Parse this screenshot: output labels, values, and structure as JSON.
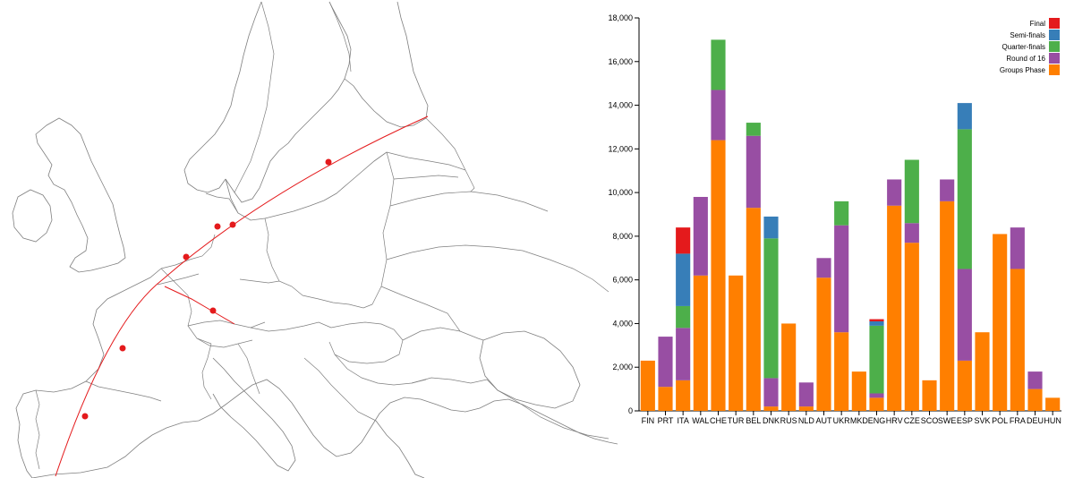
{
  "map": {
    "route_color": "#e41a1c",
    "border_color": "#7f7f7f"
  },
  "chart_data": {
    "type": "bar",
    "stacked": true,
    "categories": [
      "FIN",
      "PRT",
      "ITA",
      "WAL",
      "CHE",
      "TUR",
      "BEL",
      "DNK",
      "RUS",
      "NLD",
      "AUT",
      "UKR",
      "MKD",
      "ENG",
      "HRV",
      "CZE",
      "SCO",
      "SWE",
      "ESP",
      "SVK",
      "POL",
      "FRA",
      "DEU",
      "HUN"
    ],
    "series": [
      {
        "name": "Groups Phase",
        "color": "#ff7f00",
        "values": [
          2300,
          1100,
          1400,
          6200,
          12400,
          6200,
          9300,
          200,
          4000,
          200,
          6100,
          3600,
          1800,
          600,
          9400,
          7700,
          1400,
          9600,
          2300,
          3600,
          8100,
          6500,
          1000,
          600
        ]
      },
      {
        "name": "Round of 16",
        "color": "#984ea3",
        "values": [
          0,
          2300,
          2400,
          3600,
          2300,
          0,
          3300,
          1300,
          0,
          1100,
          900,
          4900,
          0,
          200,
          1200,
          900,
          0,
          1000,
          4200,
          0,
          0,
          1900,
          800,
          0
        ]
      },
      {
        "name": "Quarter-finals",
        "color": "#4daf4a",
        "values": [
          0,
          0,
          1000,
          0,
          2300,
          0,
          600,
          6400,
          0,
          0,
          0,
          1100,
          0,
          3100,
          0,
          2900,
          0,
          0,
          6400,
          0,
          0,
          0,
          0,
          0
        ]
      },
      {
        "name": "Semi-finals",
        "color": "#377eb8",
        "values": [
          0,
          0,
          2400,
          0,
          0,
          0,
          0,
          1000,
          0,
          0,
          0,
          0,
          0,
          200,
          0,
          0,
          0,
          0,
          1200,
          0,
          0,
          0,
          0,
          0
        ]
      },
      {
        "name": "Final",
        "color": "#e41a1c",
        "values": [
          0,
          0,
          1200,
          0,
          0,
          0,
          0,
          0,
          0,
          0,
          0,
          0,
          0,
          100,
          0,
          0,
          0,
          0,
          0,
          0,
          0,
          0,
          0,
          0
        ]
      }
    ],
    "ylim": [
      0,
      18000
    ],
    "yticks": [
      "0",
      "2,000",
      "4,000",
      "6,000",
      "8,000",
      "10,000",
      "12,000",
      "14,000",
      "16,000",
      "18,000"
    ],
    "legend_order": [
      "Final",
      "Semi-finals",
      "Quarter-finals",
      "Round of 16",
      "Groups Phase"
    ],
    "legend_position": "top-right",
    "grid": false
  }
}
